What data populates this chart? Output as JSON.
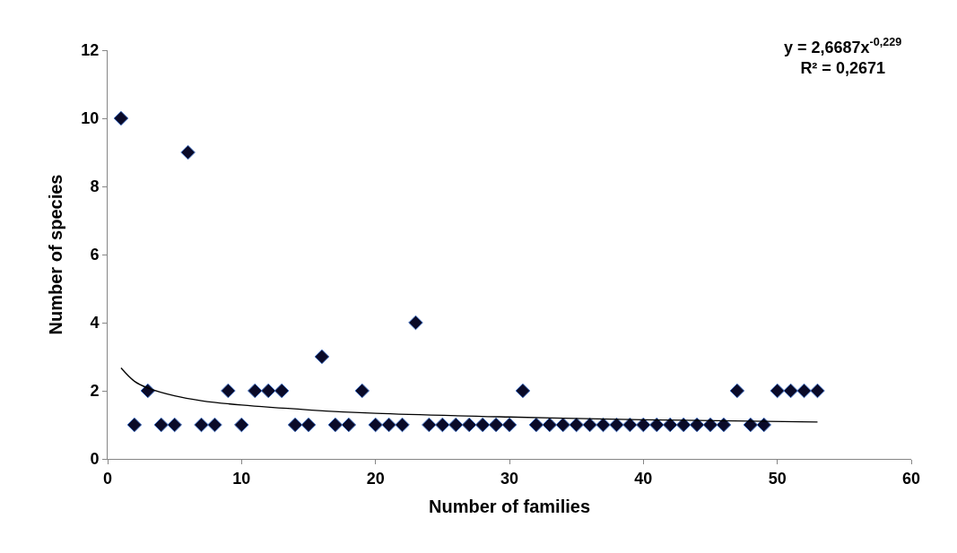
{
  "chart_data": {
    "type": "scatter",
    "xlabel": "Number of families",
    "ylabel": "Number of species",
    "xlim": [
      0,
      60
    ],
    "xticks": [
      0,
      10,
      20,
      30,
      40,
      50,
      60
    ],
    "ylim": [
      0,
      12
    ],
    "yticks": [
      0,
      2,
      4,
      6,
      8,
      10,
      12
    ],
    "annotations": [
      "y = 2,6687x$^{-0,229}$",
      "R² = 0,2671"
    ],
    "series": [
      {
        "marker": "diamond",
        "color": "#0a0a28",
        "x": [
          1,
          2,
          3,
          4,
          5,
          6,
          7,
          8,
          9,
          10,
          11,
          12,
          13,
          14,
          15,
          16,
          17,
          18,
          19,
          20,
          21,
          22,
          23,
          24,
          25,
          26,
          27,
          28,
          29,
          30,
          31,
          32,
          33,
          34,
          35,
          36,
          37,
          38,
          39,
          40,
          41,
          42,
          43,
          44,
          45,
          46,
          47,
          48,
          49,
          50,
          51,
          52,
          53
        ],
        "values": [
          10,
          1,
          2,
          1,
          1,
          9,
          1,
          1,
          2,
          1,
          2,
          2,
          2,
          1,
          1,
          3,
          1,
          1,
          2,
          1,
          1,
          1,
          4,
          1,
          1,
          1,
          1,
          1,
          1,
          1,
          2,
          1,
          1,
          1,
          1,
          1,
          1,
          1,
          1,
          1,
          1,
          1,
          1,
          1,
          1,
          1,
          2,
          1,
          1,
          2,
          2,
          2,
          2
        ]
      },
      {
        "type": "line",
        "marker": "none",
        "line_style": "solid",
        "color": "#000000",
        "x": [
          1,
          2,
          3,
          5,
          7,
          10,
          15,
          20,
          30,
          40,
          53
        ],
        "values": [
          2.67,
          2.28,
          2.08,
          1.85,
          1.71,
          1.58,
          1.44,
          1.34,
          1.23,
          1.15,
          1.08
        ]
      }
    ]
  }
}
